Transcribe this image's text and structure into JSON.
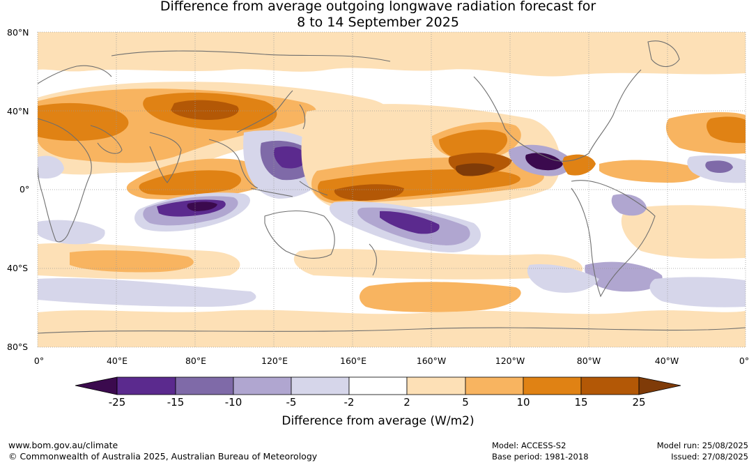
{
  "title": {
    "line1": "Difference from average outgoing longwave radiation forecast for",
    "line2": "8 to 14 September 2025"
  },
  "map": {
    "lat_labels": [
      "80°N",
      "40°N",
      "0°",
      "40°S",
      "80°S"
    ],
    "lon_labels": [
      "0°",
      "40°E",
      "80°E",
      "120°E",
      "160°E",
      "160°W",
      "120°W",
      "80°W",
      "40°W",
      "0°"
    ],
    "colors": {
      "neg25": "#3b0a4e",
      "neg15": "#5b2a8e",
      "neg10": "#7f6aa8",
      "neg5": "#b0a6d0",
      "neg2": "#d6d6ea",
      "zero": "#ffffff",
      "pos2": "#fde0b6",
      "pos5": "#f8b460",
      "pos10": "#e08214",
      "pos15": "#b35806",
      "pos25": "#7f3b08",
      "coast": "#6e6e6e"
    }
  },
  "colorbar": {
    "ticks": [
      "-25",
      "-15",
      "-10",
      "-5",
      "-2",
      "2",
      "5",
      "10",
      "15",
      "25"
    ],
    "title": "Difference from average (W/m2)"
  },
  "footer": {
    "url": "www.bom.gov.au/climate",
    "copyright": "© Commonwealth of Australia 2025, Australian Bureau of Meteorology",
    "model": "Model: ACCESS-S2",
    "base_period": "Base period: 1981-2018",
    "model_run": "Model run: 25/08/2025",
    "issued": "Issued: 27/08/2025"
  }
}
